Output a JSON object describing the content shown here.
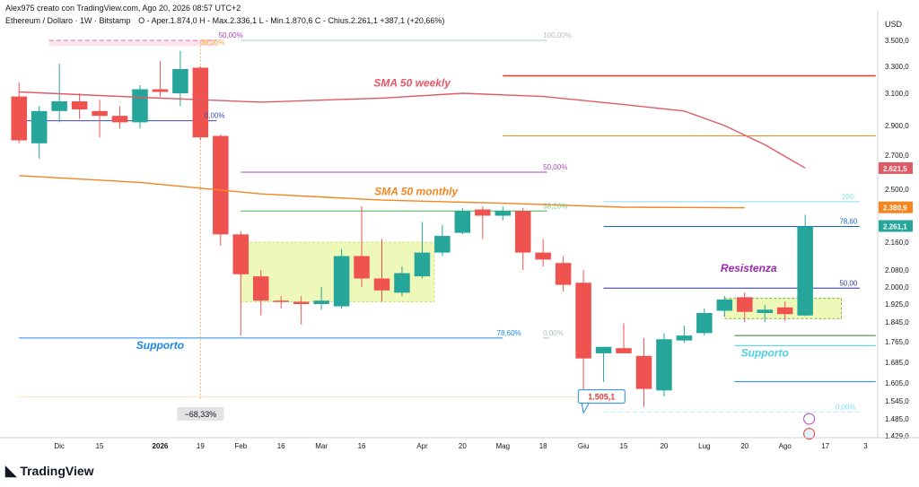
{
  "header": {
    "author_line": "Alex975 creato con TradingView.com, Ago 20, 2026 08:57 UTC+2",
    "symbol_line": "Ethereum / Dollaro · 1W · Bitstamp",
    "ohlc": "O - Aper.1.874,0  H - Max.2.336,1  L - Min.1.870,6  C - Chius.2.261,1  +387,1 (+20,66%)",
    "currency": "USD"
  },
  "footer": {
    "brand": "TradingView"
  },
  "chart_data": {
    "type": "candlestick",
    "title": "Ethereum / Dollaro · 1W · Bitstamp",
    "ylim": [
      1400,
      3560
    ],
    "y_ticks": [
      {
        "v": 3500,
        "label": "3.500,0"
      },
      {
        "v": 3300,
        "label": "3.300,0"
      },
      {
        "v": 3100,
        "label": "3.100,0"
      },
      {
        "v": 2900,
        "label": "2.900,0"
      },
      {
        "v": 2700,
        "label": "2.700,0"
      },
      {
        "v": 2500,
        "label": "2.500,0"
      },
      {
        "v": 2160,
        "label": "2.160,0"
      },
      {
        "v": 2080,
        "label": "2.080,0"
      },
      {
        "v": 2000,
        "label": "2.000,0"
      },
      {
        "v": 1925,
        "label": "1.925,0"
      },
      {
        "v": 1845,
        "label": "1.845,0"
      },
      {
        "v": 1765,
        "label": "1.765,0"
      },
      {
        "v": 1685,
        "label": "1.685,0"
      },
      {
        "v": 1605,
        "label": "1.605,0"
      },
      {
        "v": 1545,
        "label": "1.545,0"
      },
      {
        "v": 1485,
        "label": "1.485,0"
      },
      {
        "v": 1429,
        "label": "1.429,0"
      }
    ],
    "x_ticks": [
      {
        "i": 2,
        "label": "Dic"
      },
      {
        "i": 4,
        "label": "15"
      },
      {
        "i": 7,
        "label": "2026"
      },
      {
        "i": 9,
        "label": "19"
      },
      {
        "i": 11,
        "label": "Feb"
      },
      {
        "i": 13,
        "label": "16"
      },
      {
        "i": 15,
        "label": "Mar"
      },
      {
        "i": 17,
        "label": "16"
      },
      {
        "i": 20,
        "label": "Apr"
      },
      {
        "i": 22,
        "label": "20"
      },
      {
        "i": 24,
        "label": "Mag"
      },
      {
        "i": 26,
        "label": "18"
      },
      {
        "i": 28,
        "label": "Giu"
      },
      {
        "i": 30,
        "label": "15"
      },
      {
        "i": 32,
        "label": "20"
      },
      {
        "i": 34,
        "label": "Lug"
      },
      {
        "i": 36,
        "label": "20"
      },
      {
        "i": 38,
        "label": "Ago"
      },
      {
        "i": 40,
        "label": "17"
      },
      {
        "i": 42,
        "label": "3"
      }
    ],
    "candles": [
      {
        "i": 0,
        "o": 3080,
        "h": 3180,
        "l": 2780,
        "c": 2800
      },
      {
        "i": 1,
        "o": 2780,
        "h": 3020,
        "l": 2680,
        "c": 2990
      },
      {
        "i": 2,
        "o": 2990,
        "h": 3320,
        "l": 2920,
        "c": 3050
      },
      {
        "i": 3,
        "o": 3050,
        "h": 3100,
        "l": 2940,
        "c": 3000
      },
      {
        "i": 4,
        "o": 2990,
        "h": 3060,
        "l": 2820,
        "c": 2960
      },
      {
        "i": 5,
        "o": 2960,
        "h": 3020,
        "l": 2880,
        "c": 2920
      },
      {
        "i": 6,
        "o": 2920,
        "h": 3160,
        "l": 2880,
        "c": 3130
      },
      {
        "i": 7,
        "o": 3130,
        "h": 3340,
        "l": 3080,
        "c": 3110
      },
      {
        "i": 8,
        "o": 3100,
        "h": 3420,
        "l": 3020,
        "c": 3280
      },
      {
        "i": 9,
        "o": 3290,
        "h": 3300,
        "l": 2800,
        "c": 2820
      },
      {
        "i": 10,
        "o": 2830,
        "h": 2840,
        "l": 2150,
        "c": 2210
      },
      {
        "i": 11,
        "o": 2210,
        "h": 2230,
        "l": 1790,
        "c": 2060
      },
      {
        "i": 12,
        "o": 2050,
        "h": 2080,
        "l": 1875,
        "c": 1940
      },
      {
        "i": 13,
        "o": 1940,
        "h": 1960,
        "l": 1905,
        "c": 1935
      },
      {
        "i": 14,
        "o": 1935,
        "h": 1960,
        "l": 1835,
        "c": 1925
      },
      {
        "i": 15,
        "o": 1925,
        "h": 2000,
        "l": 1900,
        "c": 1940
      },
      {
        "i": 16,
        "o": 1915,
        "h": 2140,
        "l": 1905,
        "c": 2120
      },
      {
        "i": 17,
        "o": 2120,
        "h": 2390,
        "l": 2000,
        "c": 2040
      },
      {
        "i": 18,
        "o": 2040,
        "h": 2180,
        "l": 1935,
        "c": 1985
      },
      {
        "i": 19,
        "o": 1975,
        "h": 2090,
        "l": 1960,
        "c": 2065
      },
      {
        "i": 20,
        "o": 2050,
        "h": 2290,
        "l": 2040,
        "c": 2130
      },
      {
        "i": 21,
        "o": 2130,
        "h": 2270,
        "l": 2120,
        "c": 2200
      },
      {
        "i": 22,
        "o": 2220,
        "h": 2380,
        "l": 2210,
        "c": 2360
      },
      {
        "i": 23,
        "o": 2370,
        "h": 2390,
        "l": 2180,
        "c": 2330
      },
      {
        "i": 24,
        "o": 2330,
        "h": 2390,
        "l": 2300,
        "c": 2360
      },
      {
        "i": 25,
        "o": 2360,
        "h": 2380,
        "l": 2080,
        "c": 2130
      },
      {
        "i": 26,
        "o": 2130,
        "h": 2180,
        "l": 2090,
        "c": 2110
      },
      {
        "i": 27,
        "o": 2100,
        "h": 2120,
        "l": 1980,
        "c": 2010
      },
      {
        "i": 28,
        "o": 2020,
        "h": 2080,
        "l": 1560,
        "c": 1700
      },
      {
        "i": 29,
        "o": 1720,
        "h": 1745,
        "l": 1610,
        "c": 1745
      },
      {
        "i": 30,
        "o": 1740,
        "h": 1840,
        "l": 1720,
        "c": 1720
      },
      {
        "i": 31,
        "o": 1710,
        "h": 1780,
        "l": 1525,
        "c": 1585
      },
      {
        "i": 32,
        "o": 1580,
        "h": 1800,
        "l": 1560,
        "c": 1775
      },
      {
        "i": 33,
        "o": 1770,
        "h": 1830,
        "l": 1760,
        "c": 1790
      },
      {
        "i": 34,
        "o": 1800,
        "h": 1905,
        "l": 1790,
        "c": 1885
      },
      {
        "i": 35,
        "o": 1895,
        "h": 1960,
        "l": 1870,
        "c": 1945
      },
      {
        "i": 36,
        "o": 1955,
        "h": 1975,
        "l": 1845,
        "c": 1890
      },
      {
        "i": 37,
        "o": 1885,
        "h": 1920,
        "l": 1845,
        "c": 1900
      },
      {
        "i": 38,
        "o": 1910,
        "h": 1935,
        "l": 1850,
        "c": 1880
      },
      {
        "i": 39,
        "o": 1874,
        "h": 2336.1,
        "l": 1870.6,
        "c": 2261.1
      }
    ],
    "sma_weekly": {
      "label": "SMA 50 weekly",
      "color": "#e05a66",
      "tag": "2.621,5",
      "points": [
        [
          0,
          3110
        ],
        [
          6,
          3075
        ],
        [
          12,
          3045
        ],
        [
          18,
          3070
        ],
        [
          22,
          3100
        ],
        [
          26,
          3080
        ],
        [
          30,
          3030
        ],
        [
          33,
          2990
        ],
        [
          35,
          2900
        ],
        [
          37,
          2770
        ],
        [
          39,
          2625
        ]
      ]
    },
    "sma_monthly": {
      "label": "SMA 50 monthly",
      "color": "#f4851f",
      "tag": "2.380,9",
      "points": [
        [
          0,
          2580
        ],
        [
          6,
          2540
        ],
        [
          12,
          2470
        ],
        [
          18,
          2430
        ],
        [
          24,
          2410
        ],
        [
          30,
          2385
        ],
        [
          36,
          2381
        ]
      ]
    },
    "price_tag": {
      "value": 2261.1,
      "label": "2.261,1",
      "color": "#26a69a"
    },
    "axis_tags": [
      {
        "label": "2.621,5",
        "v": 2621.5,
        "color": "#e05a66"
      },
      {
        "label": "2.380,9",
        "v": 2380.9,
        "color": "#f4851f"
      },
      {
        "label": "2.261,1",
        "v": 2261.1,
        "color": "#26a69a"
      }
    ],
    "hlines": [
      {
        "v": 3500,
        "from": 1.5,
        "to": 9.8,
        "color": "#e06fa8",
        "dash": true
      },
      {
        "v": 3500,
        "from": 11,
        "to": 26.2,
        "color": "#a5d6a7",
        "dash": false
      },
      {
        "v": 3230,
        "from": 24,
        "to": 42.5,
        "color": "#e53935",
        "dash": false
      },
      {
        "v": 2930,
        "from": 0,
        "to": 9.8,
        "color": "#3949ab",
        "dash": false
      },
      {
        "v": 2830,
        "from": 24,
        "to": 42.5,
        "color": "#f4851f",
        "dash": false
      },
      {
        "v": 2600,
        "from": 11,
        "to": 26.2,
        "color": "#ab47bc",
        "dash": false
      },
      {
        "v": 2360,
        "from": 11,
        "to": 26.2,
        "color": "#4caf50",
        "dash": false
      },
      {
        "v": 2420,
        "from": 29,
        "to": 41.7,
        "color": "#80deea",
        "dash": false
      },
      {
        "v": 2261,
        "from": 29,
        "to": 41.7,
        "color": "#1565c0",
        "dash": false
      },
      {
        "v": 1995,
        "from": 29,
        "to": 41.7,
        "color": "#283593",
        "dash": false
      },
      {
        "v": 1780,
        "from": 0,
        "to": 24,
        "color": "#1e88e5",
        "dash": false
      },
      {
        "v": 1780,
        "from": 26,
        "to": 26.3,
        "color": "#b0bec5",
        "dash": false
      },
      {
        "v": 1790,
        "from": 35.5,
        "to": 42.5,
        "color": "#2e7d32",
        "dash": false
      },
      {
        "v": 1750,
        "from": 35.5,
        "to": 42.5,
        "color": "#4dd0e1",
        "dash": false
      },
      {
        "v": 1610,
        "from": 35.5,
        "to": 42.5,
        "color": "#1e88e5",
        "dash": false
      },
      {
        "v": 1508,
        "from": 29,
        "to": 41.7,
        "color": "#b2ebf2",
        "dash": true
      },
      {
        "v": 1558,
        "from": 0,
        "to": 28,
        "color": "#ffe0b2",
        "dash": false
      }
    ],
    "fib_labels": [
      {
        "text": "50,00%",
        "i": 9.9,
        "v": 3500,
        "color": "#ab47bc"
      },
      {
        "text": "38,20%",
        "i": 9.0,
        "v": 3555,
        "color": "#f4a93b"
      },
      {
        "text": "100,00%",
        "i": 26.0,
        "v": 3500,
        "color": "#b0bec5"
      },
      {
        "text": "0,00%",
        "i": 9.2,
        "v": 2930,
        "color": "#3949ab"
      },
      {
        "text": "50,00%",
        "i": 26.0,
        "v": 2600,
        "color": "#ab47bc"
      },
      {
        "text": "38,20%",
        "i": 26.0,
        "v": 2360,
        "color": "#81c784"
      },
      {
        "text": "78,60%",
        "i": 23.7,
        "v": 1780,
        "color": "#1e88e5"
      },
      {
        "text": "0,00%",
        "i": 26.0,
        "v": 1780,
        "color": "#b0bec5"
      },
      {
        "text": "100,",
        "i": 40.8,
        "v": 2420,
        "color": "#80deea"
      },
      {
        "text": "78,60",
        "i": 40.7,
        "v": 2261,
        "color": "#1565c0"
      },
      {
        "text": "50,00",
        "i": 40.7,
        "v": 1995,
        "color": "#283593"
      },
      {
        "text": "0,00%",
        "i": 40.5,
        "v": 1508,
        "color": "#80deea"
      }
    ],
    "zones": [
      {
        "from": 1.5,
        "to": 9.8,
        "top": 3500,
        "bottom": 3455,
        "fill": "#fce4ec",
        "stroke": "none"
      },
      {
        "from": 11,
        "to": 20.6,
        "top": 2160,
        "bottom": 1935,
        "fill": "#eef9b9",
        "stroke": "#cde08a"
      },
      {
        "from": 35,
        "to": 40.8,
        "top": 1950,
        "bottom": 1860,
        "fill": "#eef9b9",
        "stroke": "#7cb342"
      }
    ],
    "annotations": [
      {
        "text": "SMA 50 weekly",
        "i": 19.5,
        "v": 3150,
        "color": "#e05a66"
      },
      {
        "text": "SMA 50 monthly",
        "i": 19.7,
        "v": 2462,
        "color": "#f4851f"
      },
      {
        "text": "Resistenza",
        "i": 36.2,
        "v": 2072,
        "color": "#9c27b0"
      },
      {
        "text": "Supporto",
        "i": 7.0,
        "v": 1738,
        "color": "#1e88e5"
      },
      {
        "text": "Supporto",
        "i": 37.0,
        "v": 1707,
        "color": "#4dd0e1"
      }
    ],
    "callouts": [
      {
        "text": "−68,33%",
        "i": 9.0,
        "v": 1497,
        "bg": "#e3e3e3",
        "color": "#131722"
      },
      {
        "text": "1.505,1",
        "i": 28.9,
        "v": 1555,
        "bg": "#ffffff",
        "color": "#e53935"
      }
    ]
  }
}
